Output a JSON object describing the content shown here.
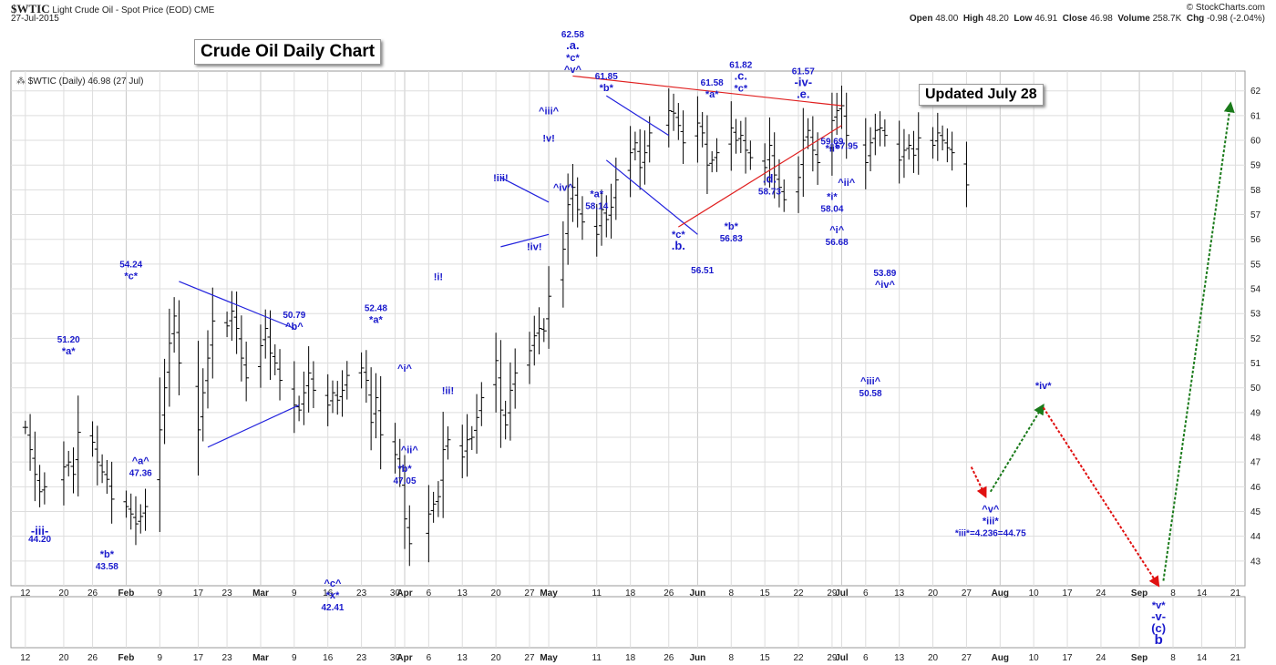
{
  "header": {
    "ticker": "$WTIC",
    "name": "Light Crude Oil - Spot Price (EOD)",
    "exchange": "CME",
    "date": "27-Jul-2015",
    "copyright": "© StockCharts.com",
    "ohlc": {
      "open_label": "Open",
      "open": "48.00",
      "high_label": "High",
      "high": "48.20",
      "low_label": "Low",
      "low": "46.91",
      "close_label": "Close",
      "close": "46.98",
      "volume_label": "Volume",
      "volume": "258.7K",
      "chg_label": "Chg",
      "chg": "-0.98 (-2.04%)"
    }
  },
  "legend": "$WTIC (Daily) 46.98 (27 Jul)",
  "title_box": "Crude Oil Daily Chart",
  "updated_box": "Updated July 28",
  "colors": {
    "bars": "#000000",
    "wave_labels": "#1a1acc",
    "trendline_blue": "#2222dd",
    "trendline_red": "#e02020",
    "forecast_up": "#1a7a1a",
    "forecast_down": "#e01010",
    "grid": "#dddddd"
  },
  "chart_data": {
    "type": "ohlc",
    "title": "Crude Oil Daily Chart",
    "ylim": [
      42,
      62.8
    ],
    "y_ticks": [
      43,
      44,
      45,
      46,
      47,
      48,
      49,
      50,
      51,
      52,
      53,
      54,
      55,
      56,
      57,
      58,
      59,
      60,
      61,
      62
    ],
    "x_tick_labels": [
      "12",
      "20",
      "26",
      "Feb",
      "9",
      "17",
      "23",
      "Mar",
      "9",
      "16",
      "23",
      "30",
      "Apr",
      "6",
      "13",
      "20",
      "27",
      "May",
      "11",
      "18",
      "26",
      "Jun",
      "8",
      "15",
      "22",
      "29",
      "Jul",
      "6",
      "13",
      "20",
      "27",
      "Aug",
      "10",
      "17",
      "24",
      "Sep",
      "8",
      "14",
      "21"
    ],
    "x_range": [
      "2015-01-09",
      "2015-09-23"
    ],
    "closes": [
      48.4,
      47.5,
      46.5,
      45.8,
      46.0,
      46.8,
      47.0,
      46.5,
      48.2,
      47.8,
      47.0,
      46.6,
      46.3,
      45.5,
      45.2,
      44.9,
      44.5,
      44.8,
      45.2,
      48.3,
      50.0,
      51.8,
      52.9,
      51.0,
      48.3,
      49.8,
      51.2,
      52.7,
      52.5,
      53.1,
      52.4,
      51.2,
      50.4,
      51.7,
      52.4,
      51.4,
      51.0,
      50.3,
      49.3,
      49.1,
      49.8,
      50.6,
      49.9,
      49.3,
      49.8,
      49.5,
      49.9,
      50.5,
      50.8,
      50.3,
      48.6,
      49.6,
      48.1,
      47.3,
      46.8,
      44.7,
      43.7,
      44.9,
      45.3,
      45.6,
      47.5,
      47.9,
      47.2,
      47.9,
      48.0,
      48.8,
      49.6,
      51.1,
      49.1,
      48.5,
      49.9,
      50.6,
      51.5,
      52.1,
      52.4,
      52.3,
      53.7,
      55.6,
      57.4,
      58.1,
      57.2,
      56.7,
      56.2,
      57.2,
      56.8,
      57.3,
      58.4,
      59.5,
      59.9,
      58.9,
      59.5,
      60.3,
      61.2,
      61.1,
      60.6,
      59.9,
      60.7,
      60.3,
      59.0,
      59.2,
      59.5,
      60.5,
      60.0,
      60.2,
      59.6,
      59.3,
      58.9,
      59.8,
      58.6,
      58.1,
      57.6,
      58.5,
      60.0,
      60.4,
      59.6,
      59.1,
      60.8,
      61.2,
      61.4,
      60.2,
      59.1,
      59.9,
      60.4,
      60.5,
      60.2,
      59.2,
      59.6,
      59.8,
      59.4,
      60.1,
      59.8,
      60.3,
      60.0,
      59.7,
      59.5,
      58.2,
      56.9,
      56.1,
      52.6,
      52.4,
      52.7,
      52.0,
      51.6,
      51.9,
      51.5,
      51.4,
      51.2,
      50.8,
      50.9,
      50.9,
      49.2,
      48.5,
      48.1,
      47.4,
      46.98
    ],
    "annotations": [
      {
        "text": "-iii-",
        "date": "2015-01-15",
        "y": 44.2,
        "size": "lg"
      },
      {
        "text": "44.20",
        "date": "2015-01-15",
        "y": 44.2,
        "size": "sm",
        "below": 1
      },
      {
        "text": "51.20",
        "date": "2015-01-21",
        "y": 51.2,
        "size": "sm",
        "above": 2
      },
      {
        "text": "*a*",
        "date": "2015-01-21",
        "y": 51.2,
        "size": "md",
        "above": 1
      },
      {
        "text": "*b*",
        "date": "2015-01-29",
        "y": 43.58,
        "size": "md",
        "below": 1
      },
      {
        "text": "43.58",
        "date": "2015-01-29",
        "y": 43.58,
        "size": "sm",
        "below": 2
      },
      {
        "text": "54.24",
        "date": "2015-02-03",
        "y": 54.24,
        "size": "sm",
        "above": 2
      },
      {
        "text": "*c*",
        "date": "2015-02-03",
        "y": 54.24,
        "size": "md",
        "above": 1
      },
      {
        "text": "^a^",
        "date": "2015-02-05",
        "y": 47.36,
        "size": "md",
        "below": 1
      },
      {
        "text": "47.36",
        "date": "2015-02-05",
        "y": 47.36,
        "size": "sm",
        "below": 2
      },
      {
        "text": "50.79",
        "date": "2015-03-09",
        "y": 52.2,
        "size": "sm",
        "above": 2
      },
      {
        "text": "^b^",
        "date": "2015-03-09",
        "y": 52.2,
        "size": "md",
        "above": 1
      },
      {
        "text": "^c^",
        "date": "2015-03-17",
        "y": 42.41,
        "size": "md",
        "below": 1
      },
      {
        "text": "*x*",
        "date": "2015-03-17",
        "y": 42.41,
        "size": "md",
        "below": 2
      },
      {
        "text": "42.41",
        "date": "2015-03-17",
        "y": 42.41,
        "size": "sm",
        "below": 3
      },
      {
        "text": "52.48",
        "date": "2015-03-26",
        "y": 52.48,
        "size": "sm",
        "above": 2
      },
      {
        "text": "*a*",
        "date": "2015-03-26",
        "y": 52.48,
        "size": "md",
        "above": 1
      },
      {
        "text": "^i^",
        "date": "2015-04-01",
        "y": 50.5,
        "size": "md",
        "above": 1
      },
      {
        "text": "^ii^",
        "date": "2015-04-02",
        "y": 47.8,
        "size": "md",
        "below": 1
      },
      {
        "text": "*b*",
        "date": "2015-04-01",
        "y": 47.05,
        "size": "md",
        "below": 1
      },
      {
        "text": "47.05",
        "date": "2015-04-01",
        "y": 47.05,
        "size": "sm",
        "below": 2
      },
      {
        "text": "!i!",
        "date": "2015-04-08",
        "y": 54.2,
        "size": "md",
        "above": 1
      },
      {
        "text": "!ii!",
        "date": "2015-04-10",
        "y": 50.2,
        "size": "md",
        "below": 1
      },
      {
        "text": "!iii!",
        "date": "2015-04-21",
        "y": 58.2,
        "size": "md",
        "above": 1
      },
      {
        "text": "!iv!",
        "date": "2015-04-28",
        "y": 56.0,
        "size": "md",
        "below": 1
      },
      {
        "text": "!v!",
        "date": "2015-05-01",
        "y": 59.8,
        "size": "md",
        "above": 1
      },
      {
        "text": "^iii^",
        "date": "2015-05-01",
        "y": 60.9,
        "size": "md",
        "above": 1
      },
      {
        "text": "^iv^",
        "date": "2015-05-04",
        "y": 58.4,
        "size": "md",
        "below": 1
      },
      {
        "text": "62.58",
        "date": "2015-05-06",
        "y": 62.58,
        "size": "sm",
        "above": 4
      },
      {
        "text": ".a.",
        "date": "2015-05-06",
        "y": 62.58,
        "size": "lg",
        "above": 3
      },
      {
        "text": "*c*",
        "date": "2015-05-06",
        "y": 62.58,
        "size": "md",
        "above": 2
      },
      {
        "text": "^v^",
        "date": "2015-05-06",
        "y": 62.58,
        "size": "md",
        "above": 1
      },
      {
        "text": "*a*",
        "date": "2015-05-11",
        "y": 58.14,
        "size": "md",
        "below": 1
      },
      {
        "text": "58.14",
        "date": "2015-05-11",
        "y": 58.14,
        "size": "sm",
        "below": 2
      },
      {
        "text": "61.85",
        "date": "2015-05-13",
        "y": 61.85,
        "size": "sm",
        "above": 2
      },
      {
        "text": "*b*",
        "date": "2015-05-13",
        "y": 61.85,
        "size": "md",
        "above": 1
      },
      {
        "text": "*c*",
        "date": "2015-05-28",
        "y": 56.51,
        "size": "md",
        "below": 1
      },
      {
        "text": ".b.",
        "date": "2015-05-28",
        "y": 56.51,
        "size": "lg",
        "below": 2
      },
      {
        "text": "56.51",
        "date": "2015-06-02",
        "y": 56.51,
        "size": "sm",
        "below": 4
      },
      {
        "text": "61.58",
        "date": "2015-06-04",
        "y": 61.58,
        "size": "sm",
        "above": 2
      },
      {
        "text": "*a*",
        "date": "2015-06-04",
        "y": 61.58,
        "size": "md",
        "above": 1
      },
      {
        "text": "*b*",
        "date": "2015-06-08",
        "y": 56.83,
        "size": "md",
        "below": 1
      },
      {
        "text": "56.83",
        "date": "2015-06-08",
        "y": 56.83,
        "size": "sm",
        "below": 2
      },
      {
        "text": "61.82",
        "date": "2015-06-10",
        "y": 61.82,
        "size": "sm",
        "above": 3
      },
      {
        "text": ".c.",
        "date": "2015-06-10",
        "y": 61.82,
        "size": "lg",
        "above": 2
      },
      {
        "text": "*c*",
        "date": "2015-06-10",
        "y": 61.82,
        "size": "md",
        "above": 1
      },
      {
        "text": ".d.",
        "date": "2015-06-16",
        "y": 58.73,
        "size": "lg",
        "below": 1
      },
      {
        "text": "58.73",
        "date": "2015-06-16",
        "y": 58.73,
        "size": "sm",
        "below": 2
      },
      {
        "text": "61.57",
        "date": "2015-06-23",
        "y": 61.57,
        "size": "sm",
        "above": 3
      },
      {
        "text": "-iv-",
        "date": "2015-06-23",
        "y": 61.57,
        "size": "lg",
        "above": 2
      },
      {
        "text": ".e.",
        "date": "2015-06-23",
        "y": 61.57,
        "size": "lg",
        "above": 1
      },
      {
        "text": "59.69",
        "date": "2015-06-29",
        "y": 59.69,
        "size": "sm",
        "above": 1
      },
      {
        "text": "*ii*",
        "date": "2015-06-29",
        "y": 59.69,
        "size": "md",
        "at": 1
      },
      {
        "text": "*i*",
        "date": "2015-06-29",
        "y": 58.04,
        "size": "md",
        "below": 1
      },
      {
        "text": "58.04",
        "date": "2015-06-29",
        "y": 58.04,
        "size": "sm",
        "below": 2
      },
      {
        "text": "57.95",
        "date": "2015-07-02",
        "y": 59.5,
        "size": "sm",
        "above": 1
      },
      {
        "text": "^ii^",
        "date": "2015-07-02",
        "y": 58.3,
        "size": "md",
        "at": 1
      },
      {
        "text": "^i^",
        "date": "2015-06-30",
        "y": 56.68,
        "size": "md",
        "below": 1
      },
      {
        "text": "56.68",
        "date": "2015-06-30",
        "y": 56.68,
        "size": "sm",
        "below": 2
      },
      {
        "text": "53.89",
        "date": "2015-07-10",
        "y": 53.89,
        "size": "sm",
        "above": 2
      },
      {
        "text": "^iv^",
        "date": "2015-07-10",
        "y": 53.89,
        "size": "md",
        "above": 1
      },
      {
        "text": "^iii^",
        "date": "2015-07-07",
        "y": 50.58,
        "size": "md",
        "below": 1
      },
      {
        "text": "50.58",
        "date": "2015-07-07",
        "y": 50.58,
        "size": "sm",
        "below": 2
      },
      {
        "text": "^v^",
        "date": "2015-08-01",
        "y": 45.4,
        "size": "md",
        "below": 1
      },
      {
        "text": "*iii*",
        "date": "2015-08-01",
        "y": 45.4,
        "size": "md",
        "below": 2
      },
      {
        "text": "*iii*=4.236=44.75",
        "date": "2015-08-01",
        "y": 45.4,
        "size": "sm",
        "below": 3
      },
      {
        "text": "*iv*",
        "date": "2015-08-12",
        "y": 50.1,
        "size": "md",
        "at": 1
      },
      {
        "text": "*v*",
        "date": "2015-09-05",
        "y": 42.0,
        "size": "md",
        "below": 2
      },
      {
        "text": "-v-",
        "date": "2015-09-05",
        "y": 42.0,
        "size": "lg",
        "below": 3
      },
      {
        "text": "(c)",
        "date": "2015-09-05",
        "y": 42.0,
        "size": "lg",
        "below": 4
      },
      {
        "text": "b",
        "date": "2015-09-05",
        "y": 42.0,
        "size": "xl",
        "below": 5
      }
    ],
    "trendlines": [
      {
        "color": "blue",
        "p1": [
          "2015-02-13",
          54.3
        ],
        "p2": [
          "2015-03-09",
          52.4
        ]
      },
      {
        "color": "blue",
        "p1": [
          "2015-02-19",
          47.6
        ],
        "p2": [
          "2015-03-10",
          49.3
        ]
      },
      {
        "color": "blue",
        "p1": [
          "2015-04-21",
          58.5
        ],
        "p2": [
          "2015-05-01",
          57.5
        ]
      },
      {
        "color": "blue",
        "p1": [
          "2015-04-21",
          55.7
        ],
        "p2": [
          "2015-05-01",
          56.2
        ]
      },
      {
        "color": "blue",
        "p1": [
          "2015-05-13",
          61.8
        ],
        "p2": [
          "2015-05-26",
          60.2
        ]
      },
      {
        "color": "blue",
        "p1": [
          "2015-05-13",
          59.2
        ],
        "p2": [
          "2015-06-01",
          56.2
        ]
      },
      {
        "color": "red",
        "p1": [
          "2015-05-06",
          62.6
        ],
        "p2": [
          "2015-07-01",
          61.4
        ]
      },
      {
        "color": "red",
        "p1": [
          "2015-05-28",
          56.5
        ],
        "p2": [
          "2015-07-01",
          60.6
        ]
      }
    ],
    "forecast": [
      {
        "color": "down",
        "from": [
          "2015-07-28",
          46.8
        ],
        "to": [
          "2015-07-31",
          45.6
        ]
      },
      {
        "color": "up",
        "from": [
          "2015-08-01",
          45.8
        ],
        "to": [
          "2015-08-12",
          49.3
        ]
      },
      {
        "color": "down",
        "from": [
          "2015-08-12",
          49.2
        ],
        "to": [
          "2015-09-05",
          42.0
        ]
      },
      {
        "color": "up",
        "from": [
          "2015-09-06",
          42.2
        ],
        "to": [
          "2015-09-20",
          61.5
        ]
      }
    ]
  }
}
